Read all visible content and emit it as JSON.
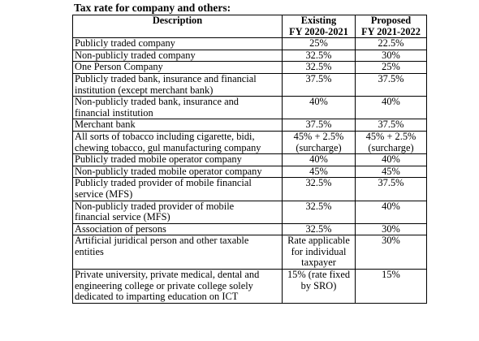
{
  "title": "Tax rate for company and others:",
  "headers": {
    "description": "Description",
    "existing": [
      "Existing",
      "FY 2020-2021"
    ],
    "proposed": [
      "Proposed",
      "FY 2021-2022"
    ]
  },
  "rows": [
    {
      "desc": [
        "Publicly traded company"
      ],
      "existing": [
        "25%"
      ],
      "proposed": [
        "22.5%"
      ]
    },
    {
      "desc": [
        "Non-publicly traded company"
      ],
      "existing": [
        "32.5%"
      ],
      "proposed": [
        "30%"
      ]
    },
    {
      "desc": [
        "One Person Company"
      ],
      "existing": [
        "32.5%"
      ],
      "proposed": [
        "25%"
      ]
    },
    {
      "desc": [
        "Publicly traded bank, insurance and financial",
        "institution (except merchant bank)"
      ],
      "existing": [
        "37.5%"
      ],
      "proposed": [
        "37.5%"
      ]
    },
    {
      "desc": [
        "Non-publicly traded bank, insurance and",
        "financial institution"
      ],
      "existing": [
        "40%"
      ],
      "proposed": [
        "40%"
      ]
    },
    {
      "desc": [
        "Merchant bank"
      ],
      "existing": [
        "37.5%"
      ],
      "proposed": [
        "37.5%"
      ]
    },
    {
      "desc": [
        "All sorts of tobacco including cigarette, bidi,",
        "chewing tobacco, gul manufacturing company"
      ],
      "existing": [
        "45% + 2.5%",
        "(surcharge)"
      ],
      "proposed": [
        "45% + 2.5%",
        "(surcharge)"
      ]
    },
    {
      "desc": [
        "Publicly traded mobile operator company"
      ],
      "existing": [
        "40%"
      ],
      "proposed": [
        "40%"
      ]
    },
    {
      "desc": [
        "Non-publicly traded mobile operator company"
      ],
      "existing": [
        "45%"
      ],
      "proposed": [
        "45%"
      ]
    },
    {
      "desc": [
        "Publicly traded provider of mobile financial",
        "service (MFS)"
      ],
      "existing": [
        "32.5%"
      ],
      "proposed": [
        "37.5%"
      ]
    },
    {
      "desc": [
        "Non-publicly traded provider of mobile",
        "financial service (MFS)"
      ],
      "existing": [
        "32.5%"
      ],
      "proposed": [
        "40%"
      ]
    },
    {
      "desc": [
        "Association of persons"
      ],
      "existing": [
        "32.5%"
      ],
      "proposed": [
        "30%"
      ]
    },
    {
      "desc": [
        "Artificial juridical person and other taxable",
        "entities"
      ],
      "existing": [
        "Rate applicable",
        "for individual",
        "taxpayer"
      ],
      "proposed": [
        "30%"
      ]
    },
    {
      "desc": [
        "Private university, private medical, dental and",
        "engineering college or private college solely",
        "dedicated to imparting education on ICT"
      ],
      "existing": [
        "15% (rate fixed",
        "by SRO)"
      ],
      "proposed": [
        "15%"
      ]
    }
  ]
}
